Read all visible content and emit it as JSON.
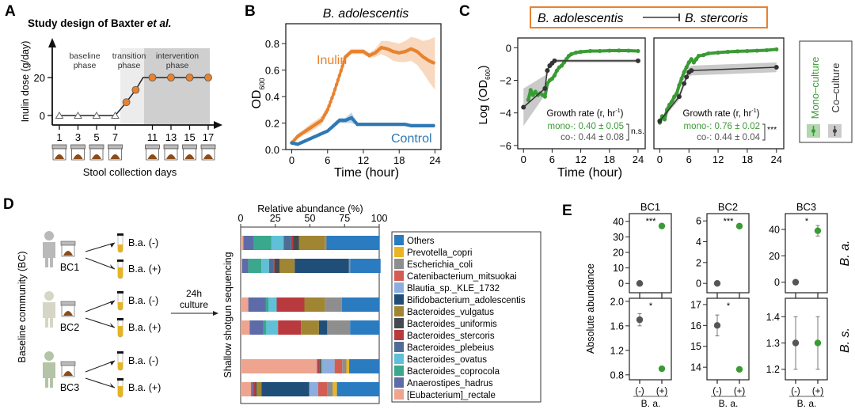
{
  "panels": {
    "A": {
      "letter": "A"
    },
    "B": {
      "letter": "B"
    },
    "C": {
      "letter": "C"
    },
    "D": {
      "letter": "D"
    },
    "E": {
      "letter": "E"
    }
  },
  "colors": {
    "orange": "#e8822e",
    "blue": "#2f78b3",
    "green": "#3a9b35",
    "dark": "#444444",
    "shade_light": "#ececec",
    "shade_dark": "#cfcfcf"
  },
  "chart_data": [
    {
      "id": "A",
      "type": "line",
      "title_prefix": "Study design of Baxter ",
      "title_italic": "et al.",
      "ylabel": "Inulin dose (g/day)",
      "xlabel": "Stool collection days",
      "yticks": [
        0,
        20
      ],
      "phases": [
        {
          "label_1": "baseline",
          "label_2": "phase"
        },
        {
          "label_1": "transition",
          "label_2": "phase"
        },
        {
          "label_1": "intervention",
          "label_2": "phase"
        }
      ],
      "days": [
        1,
        3,
        5,
        7,
        11,
        13,
        15,
        17
      ],
      "baseline_points": [
        {
          "day": 1,
          "dose": 0
        },
        {
          "day": 3,
          "dose": 0
        },
        {
          "day": 5,
          "dose": 0
        },
        {
          "day": 7,
          "dose": 0
        }
      ],
      "transition_points": [
        {
          "day": 8.2,
          "dose": 7
        },
        {
          "day": 9.2,
          "dose": 13.5
        }
      ],
      "intervention_points": [
        {
          "day": 11,
          "dose": 20
        },
        {
          "day": 13,
          "dose": 20
        },
        {
          "day": 15,
          "dose": 20
        },
        {
          "day": 17,
          "dose": 20
        }
      ],
      "ylim": [
        0,
        28
      ]
    },
    {
      "id": "B",
      "type": "line",
      "title": "B. adolescentis",
      "ylabel_main": "OD",
      "ylabel_sub": "600",
      "xlabel": "Time (hour)",
      "xticks": [
        0,
        6,
        12,
        18,
        24
      ],
      "yticks": [
        "0.0",
        "0.2",
        "0.4",
        "0.6",
        "0.8"
      ],
      "xlim": [
        -1,
        25
      ],
      "ylim": [
        0,
        0.95
      ],
      "series": [
        {
          "name": "Inulin",
          "color": "#e8822e",
          "x": [
            0,
            1,
            2,
            3,
            4,
            5,
            6,
            7,
            8,
            9,
            10,
            11,
            12,
            13,
            14,
            15,
            16,
            17,
            18,
            19,
            20,
            21,
            22,
            23,
            24
          ],
          "y": [
            0.05,
            0.1,
            0.13,
            0.16,
            0.19,
            0.22,
            0.3,
            0.42,
            0.56,
            0.7,
            0.74,
            0.74,
            0.74,
            0.71,
            0.73,
            0.77,
            0.76,
            0.74,
            0.73,
            0.74,
            0.76,
            0.74,
            0.7,
            0.67,
            0.65
          ],
          "spread": [
            0.01,
            0.02,
            0.02,
            0.03,
            0.03,
            0.03,
            0.03,
            0.03,
            0.03,
            0.02,
            0.02,
            0.02,
            0.02,
            0.02,
            0.03,
            0.05,
            0.06,
            0.07,
            0.07,
            0.08,
            0.09,
            0.1,
            0.12,
            0.16,
            0.2
          ]
        },
        {
          "name": "Control",
          "color": "#2f78b3",
          "x": [
            0,
            1,
            2,
            3,
            4,
            5,
            6,
            7,
            8,
            9,
            10,
            11,
            12,
            13,
            14,
            15,
            16,
            17,
            18,
            19,
            20,
            21,
            22,
            23,
            24
          ],
          "y": [
            0.05,
            0.04,
            0.06,
            0.08,
            0.1,
            0.12,
            0.14,
            0.18,
            0.22,
            0.22,
            0.24,
            0.19,
            0.19,
            0.19,
            0.19,
            0.19,
            0.19,
            0.19,
            0.19,
            0.19,
            0.18,
            0.18,
            0.18,
            0.18,
            0.18
          ],
          "spread": [
            0.01,
            0.01,
            0.01,
            0.01,
            0.01,
            0.01,
            0.01,
            0.02,
            0.02,
            0.02,
            0.04,
            0.01,
            0.01,
            0.01,
            0.01,
            0.01,
            0.01,
            0.01,
            0.01,
            0.01,
            0.01,
            0.01,
            0.01,
            0.01,
            0.01
          ]
        }
      ]
    },
    {
      "id": "C",
      "type": "line",
      "header_left": "B. adolescentis",
      "header_right": "B. stercoris",
      "ylabel_main": "Log (OD",
      "ylabel_sub": "600",
      "ylabel_end": ")",
      "xlabel": "Time (hour)",
      "xticks": [
        0,
        6,
        12,
        18,
        24
      ],
      "yticks": [
        0,
        -2,
        -4,
        -6
      ],
      "ylim": [
        -6.2,
        0.6
      ],
      "legend": {
        "mono": "Mono–culture",
        "co": "Co–culture"
      },
      "subplots": [
        {
          "name": "B. adolescentis",
          "growth_title": "Growth rate (r, hr",
          "growth_sup": "-1",
          "mono_text": "mono-: 0.40 ± 0.05",
          "co_text": "co-: 0.44 ± 0.08",
          "significance": "n.s.",
          "mono": {
            "x": [
              1,
              1.5,
              2,
              2.5,
              3,
              3.5,
              4,
              4.5,
              5,
              5.5,
              6,
              6.5,
              7,
              7.5,
              8,
              8.5,
              9,
              9.5,
              10,
              11,
              12,
              14,
              16,
              18,
              20,
              22,
              24
            ],
            "y": [
              -3.2,
              -2.6,
              -2.9,
              -2.7,
              -2.9,
              -2.8,
              -2.9,
              -3.0,
              -2.2,
              -2.0,
              -1.9,
              -1.7,
              -1.4,
              -1.2,
              -1.1,
              -0.9,
              -0.7,
              -0.5,
              -0.4,
              -0.3,
              -0.25,
              -0.2,
              -0.2,
              -0.18,
              -0.17,
              -0.18,
              -0.2
            ]
          },
          "co": {
            "x": [
              0,
              4.5,
              5,
              5.5,
              6,
              6.5,
              24
            ],
            "y": [
              -3.65,
              -2.5,
              -1.4,
              -1.1,
              -0.95,
              -0.8,
              -0.8
            ],
            "band_lo": [
              -4.8,
              -2.9,
              -1.6,
              -1.25,
              -1.05,
              -0.9,
              -0.9
            ],
            "band_hi": [
              -2.5,
              -1.7,
              -1.2,
              -0.95,
              -0.85,
              -0.7,
              -0.7
            ]
          }
        },
        {
          "name": "B. stercoris",
          "growth_title": "Growth rate (r, hr",
          "growth_sup": "-1",
          "mono_text": "mono-: 0.76 ± 0.02",
          "co_text": "co-: 0.44 ± 0.04",
          "significance": "***",
          "mono": {
            "x": [
              0,
              0.5,
              1,
              1.5,
              2,
              2.5,
              3,
              3.5,
              4,
              4.5,
              5,
              5.5,
              6,
              6.5,
              7,
              7.5,
              8,
              9,
              10,
              12,
              14,
              16,
              18,
              20,
              22,
              24
            ],
            "y": [
              -4.6,
              -4.2,
              -4.4,
              -3.8,
              -3.5,
              -3.3,
              -3.0,
              -2.8,
              -2.3,
              -1.9,
              -1.5,
              -1.2,
              -0.9,
              -0.7,
              -0.9,
              -0.7,
              -0.5,
              -0.45,
              -0.35,
              -0.3,
              -0.25,
              -0.22,
              -0.2,
              -0.18,
              -0.15,
              -0.1
            ]
          },
          "co": {
            "x": [
              0,
              4,
              5,
              5.5,
              6,
              6.5,
              24
            ],
            "y": [
              -4.5,
              -3.0,
              -2.2,
              -1.8,
              -1.5,
              -1.4,
              -1.2
            ],
            "band_lo": [
              -4.6,
              -3.2,
              -2.4,
              -2.0,
              -1.8,
              -1.7,
              -1.5
            ],
            "band_hi": [
              -4.4,
              -2.8,
              -2.0,
              -1.6,
              -1.2,
              -1.1,
              -0.9
            ]
          }
        }
      ]
    },
    {
      "id": "D",
      "type": "bar",
      "orientation": "horizontal-stacked",
      "xlabel": "Relative abundance (%)",
      "ylabel": "Shallow shotgun sequencing",
      "xticks": [
        0,
        25,
        50,
        75,
        100
      ],
      "xlim": [
        0,
        100
      ],
      "side_label": "Baseline community (BC)",
      "culture_label_1": "24h",
      "culture_label_2": "culture",
      "communities": [
        "BC1",
        "BC2",
        "BC3"
      ],
      "tube_labels": [
        "B.a. (-)",
        "B.a. (+)"
      ],
      "legend": [
        {
          "name": "Others",
          "color": "#2b7bc0"
        },
        {
          "name": "Prevotella_copri",
          "color": "#e9b525"
        },
        {
          "name": "Escherichia_coli",
          "color": "#8e8e8e"
        },
        {
          "name": "Catenibacterium_mitsuokai",
          "color": "#d35d52"
        },
        {
          "name": "Blautia_sp._KLE_1732",
          "color": "#8baede"
        },
        {
          "name": "Bifidobacterium_adolescentis",
          "color": "#1f4e79"
        },
        {
          "name": "Bacteroides_vulgatus",
          "color": "#a08532"
        },
        {
          "name": "Bacteroides_uniformis",
          "color": "#444a50"
        },
        {
          "name": "Bacteroides_stercoris",
          "color": "#b93a3e"
        },
        {
          "name": "Bacteroides_plebeius",
          "color": "#4f6d94"
        },
        {
          "name": "Bacteroides_ovatus",
          "color": "#5fc0d8"
        },
        {
          "name": "Bacteroides_coprocola",
          "color": "#3aa88d"
        },
        {
          "name": "Anaerostipes_hadrus",
          "color": "#5d6ca8"
        },
        {
          "name": "[Eubacterium]_rectale",
          "color": "#eea48e"
        }
      ],
      "bar_order": [
        "[Eubacterium]_rectale",
        "Anaerostipes_hadrus",
        "Bacteroides_coprocola",
        "Bacteroides_ovatus",
        "Bacteroides_plebeius",
        "Bacteroides_stercoris",
        "Bacteroides_uniformis",
        "Bacteroides_vulgatus",
        "Bifidobacterium_adolescentis",
        "Blautia_sp._KLE_1732",
        "Catenibacterium_mitsuokai",
        "Escherichia_coli",
        "Prevotella_copri",
        "Others"
      ],
      "bars": [
        {
          "label": "BC1 B.a. (-)",
          "values": [
            2,
            7.5,
            12.5,
            9,
            5.5,
            1.5,
            4,
            19,
            0,
            0,
            0,
            1,
            0,
            38
          ]
        },
        {
          "label": "BC1 B.a. (+)",
          "values": [
            1,
            4.5,
            9.5,
            5.5,
            3,
            1,
            3.5,
            11,
            39,
            0,
            0,
            1,
            0,
            22
          ]
        },
        {
          "label": "BC2 B.a. (-)",
          "values": [
            5.5,
            12.5,
            2,
            6,
            0,
            20,
            0,
            15,
            0,
            0,
            0,
            12,
            0,
            27
          ]
        },
        {
          "label": "BC2 B.a. (+)",
          "values": [
            6.5,
            10,
            2,
            8.5,
            0,
            16.5,
            0,
            13,
            6,
            0,
            0,
            16.5,
            0,
            21
          ]
        },
        {
          "label": "BC3 B.a. (-)",
          "values": [
            55,
            1,
            0,
            0,
            0,
            1,
            0.8,
            1,
            0,
            9,
            5.5,
            3,
            2,
            21.7
          ]
        },
        {
          "label": "BC3 B.a. (+)",
          "values": [
            7.5,
            1.5,
            0,
            0,
            0,
            1.5,
            1,
            3.5,
            34.5,
            6.5,
            6.5,
            4,
            3,
            30.5
          ]
        }
      ]
    },
    {
      "id": "E",
      "type": "scatter",
      "ylabel": "Absolute abundance",
      "xticks": [
        "(-)",
        "(+)"
      ],
      "xlabel": "B. a.",
      "row_labels": [
        "B. a.",
        "B. s."
      ],
      "columns": [
        {
          "title": "BC1",
          "top": {
            "yticks": [
              0,
              10,
              20,
              30,
              40
            ],
            "ylim": [
              -6,
              45
            ],
            "sig": "***",
            "points": [
              {
                "x": "(-)",
                "y": 0,
                "err": 0
              },
              {
                "x": "(+)",
                "y": 37,
                "err": 0
              }
            ]
          },
          "bottom": {
            "yticks": [
              "0.8",
              "1.2",
              "1.6",
              "2.0"
            ],
            "ylim": [
              0.72,
              2.05
            ],
            "sig": "*",
            "points": [
              {
                "x": "(-)",
                "y": 1.7,
                "err": 0.1
              },
              {
                "x": "(+)",
                "y": 0.9,
                "err": 0
              }
            ]
          }
        },
        {
          "title": "BC2",
          "top": {
            "yticks": [
              0,
              2,
              4,
              6
            ],
            "ylim": [
              -0.9,
              6.7
            ],
            "sig": "***",
            "points": [
              {
                "x": "(-)",
                "y": 0,
                "err": 0
              },
              {
                "x": "(+)",
                "y": 5.5,
                "err": 0
              }
            ]
          },
          "bottom": {
            "yticks": [
              14,
              15,
              16,
              17
            ],
            "ylim": [
              13.4,
              17.3
            ],
            "sig": "*",
            "points": [
              {
                "x": "(-)",
                "y": 16,
                "err": 0.5
              },
              {
                "x": "(+)",
                "y": 13.9,
                "err": 0
              }
            ]
          }
        },
        {
          "title": "BC3",
          "top": {
            "yticks": [
              0,
              20,
              40
            ],
            "ylim": [
              -8,
              52
            ],
            "sig": "*",
            "points": [
              {
                "x": "(-)",
                "y": 0,
                "err": 0
              },
              {
                "x": "(+)",
                "y": 39,
                "err": 4
              }
            ]
          },
          "bottom": {
            "yticks": [
              "1.2",
              "1.3",
              "1.4"
            ],
            "ylim": [
              1.16,
              1.47
            ],
            "sig": "",
            "points": [
              {
                "x": "(-)",
                "y": 1.3,
                "err": 0.1
              },
              {
                "x": "(+)",
                "y": 1.3,
                "err": 0.1
              }
            ]
          }
        }
      ]
    }
  ]
}
